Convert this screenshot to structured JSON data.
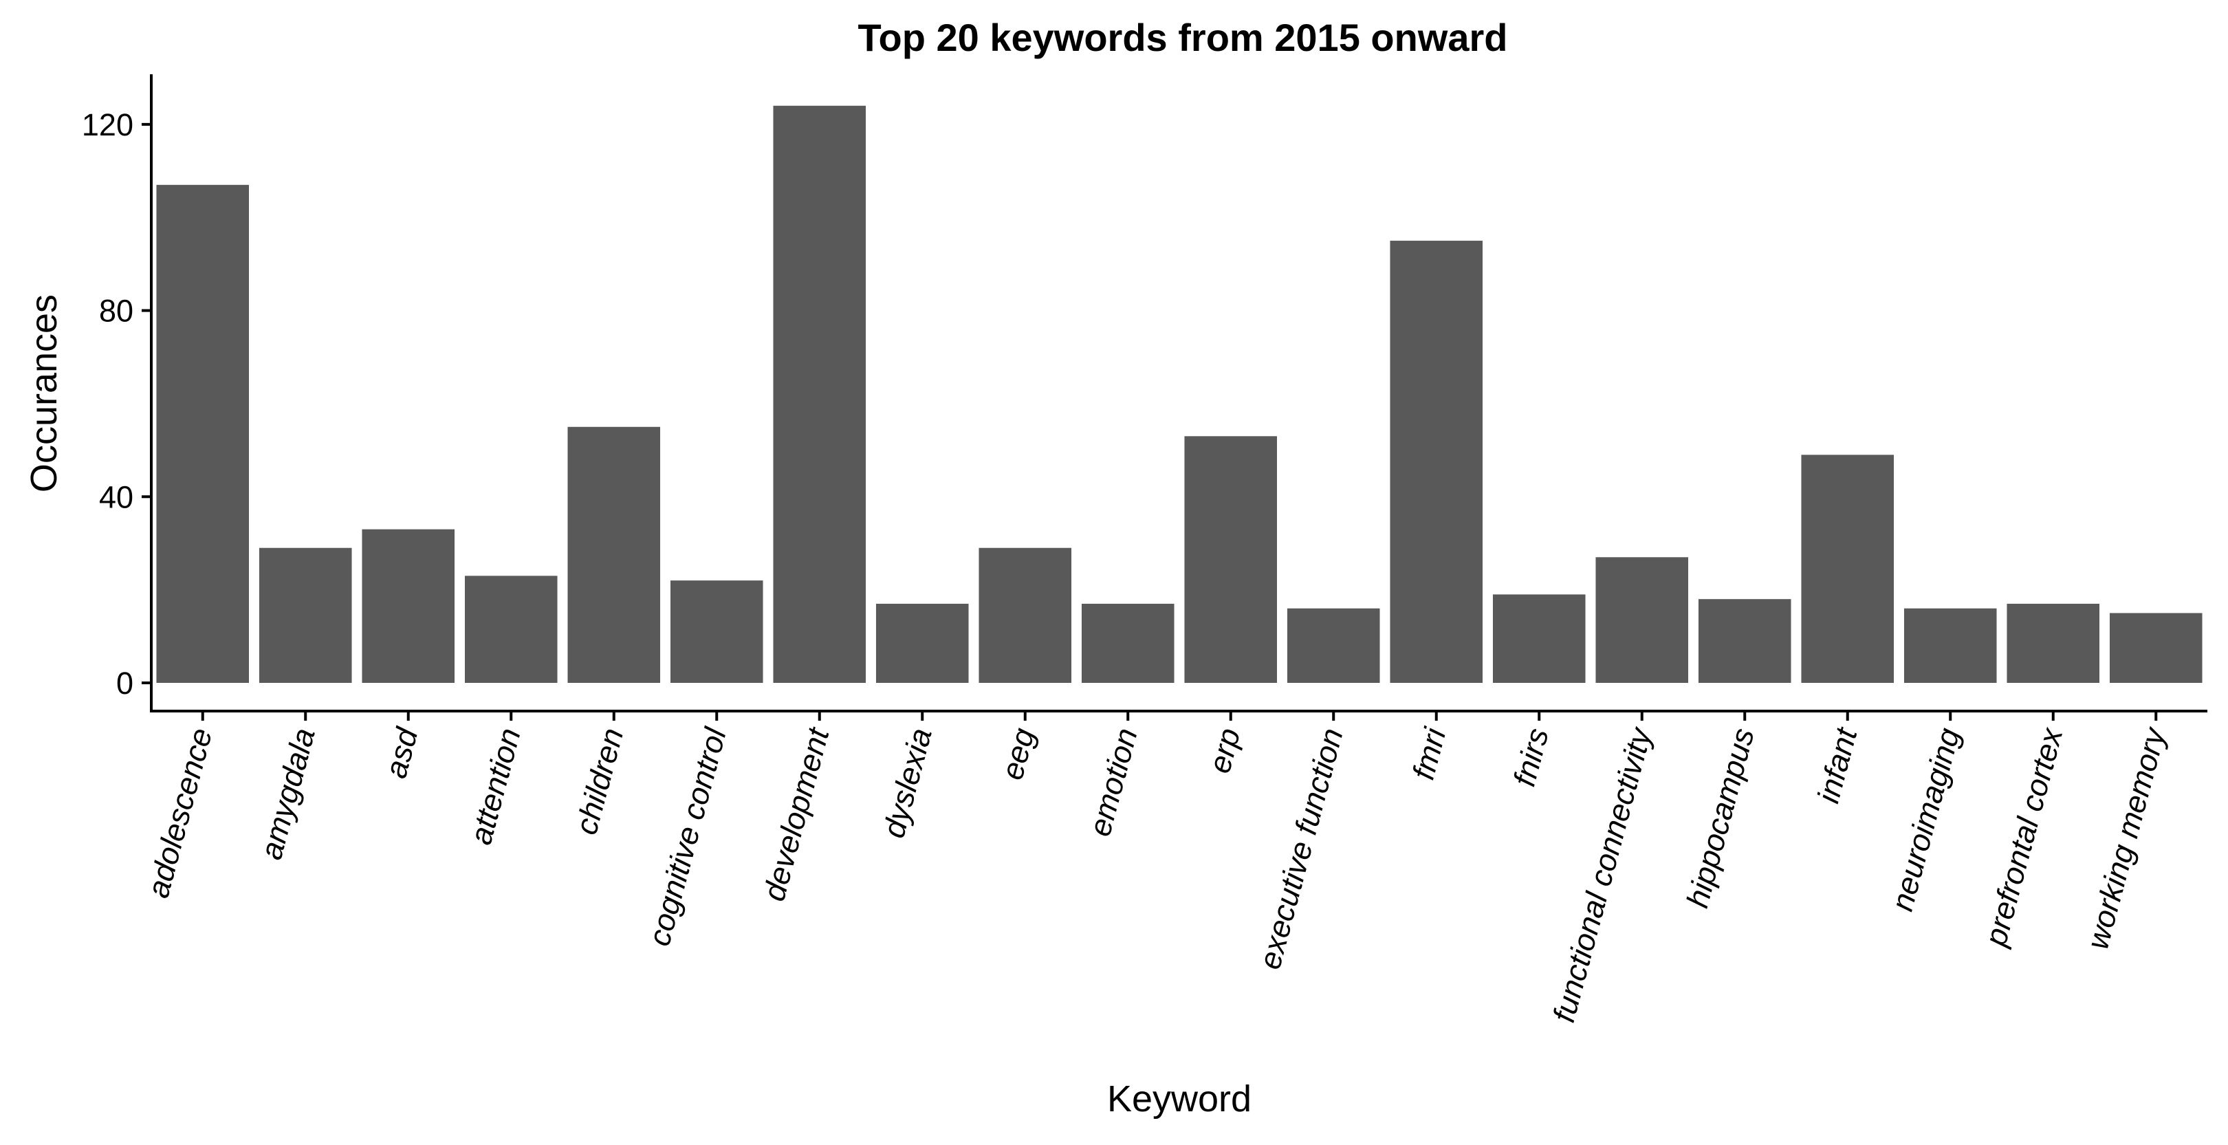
{
  "chart_data": {
    "type": "bar",
    "title": "Top 20 keywords from 2015 onward",
    "xlabel": "Keyword",
    "ylabel": "Occurances",
    "categories": [
      "adolescence",
      "amygdala",
      "asd",
      "attention",
      "children",
      "cognitive control",
      "development",
      "dyslexia",
      "eeg",
      "emotion",
      "erp",
      "executive function",
      "fmri",
      "fnirs",
      "functional connectivity",
      "hippocampus",
      "infant",
      "neuroimaging",
      "prefrontal cortex",
      "working memory"
    ],
    "values": [
      107,
      29,
      33,
      23,
      55,
      22,
      124,
      17,
      29,
      17,
      53,
      16,
      95,
      19,
      27,
      18,
      49,
      16,
      17,
      15
    ],
    "ylim": [
      0,
      130
    ],
    "yticks": [
      0,
      40,
      80,
      120
    ],
    "bar_color": "#595959",
    "grid": false,
    "legend": "none"
  }
}
